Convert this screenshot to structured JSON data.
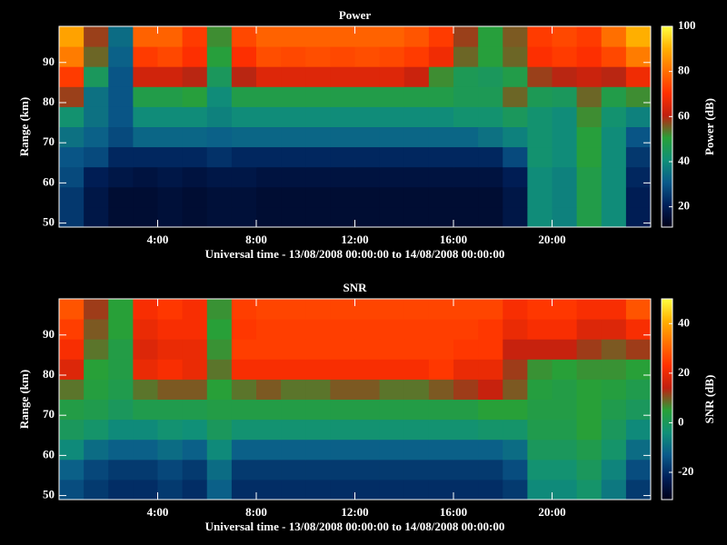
{
  "chart_data": [
    {
      "type": "heatmap",
      "title": "Power",
      "xlabel": "Universal time - 13/08/2008 00:00:00 to 14/08/2008 00:00:00",
      "ylabel": "Range (km)",
      "colorbar_label": "Power (dB)",
      "xlim": [
        0,
        24
      ],
      "xticks": [
        {
          "value": 4,
          "label": "4:00"
        },
        {
          "value": 8,
          "label": "8:00"
        },
        {
          "value": 12,
          "label": "12:00"
        },
        {
          "value": 16,
          "label": "16:00"
        },
        {
          "value": 20,
          "label": "20:00"
        }
      ],
      "ylim": [
        49,
        99
      ],
      "yticks": [
        50,
        60,
        70,
        80,
        90
      ],
      "zlim": [
        11,
        100
      ],
      "zticks": [
        20,
        40,
        60,
        80,
        100
      ],
      "colors": [
        "#000018",
        "#00205a",
        "#0a5a8a",
        "#109078",
        "#28a038",
        "#c02010",
        "#ff3000",
        "#ff7000",
        "#ffb000",
        "#ffff40"
      ],
      "xbins": [
        0,
        1,
        2,
        3,
        4,
        5,
        6,
        7,
        8,
        9,
        10,
        11,
        12,
        13,
        14,
        15,
        16,
        17,
        18,
        19,
        20,
        21,
        22,
        23,
        24
      ],
      "ybins": [
        49,
        54,
        59,
        64,
        69,
        74,
        79,
        84,
        89,
        94,
        99
      ],
      "values": [
        [
          25,
          18,
          15,
          15,
          16,
          15,
          16,
          16,
          15,
          15,
          15,
          15,
          15,
          15,
          15,
          15,
          15,
          15,
          18,
          40,
          38,
          48,
          40,
          20
        ],
        [
          25,
          18,
          15,
          15,
          16,
          15,
          16,
          16,
          15,
          15,
          15,
          15,
          15,
          15,
          15,
          15,
          15,
          15,
          18,
          40,
          38,
          48,
          40,
          20
        ],
        [
          28,
          20,
          18,
          17,
          18,
          17,
          18,
          18,
          17,
          17,
          17,
          17,
          17,
          17,
          17,
          17,
          17,
          17,
          20,
          40,
          38,
          48,
          40,
          22
        ],
        [
          30,
          28,
          22,
          22,
          22,
          22,
          24,
          22,
          22,
          22,
          22,
          22,
          22,
          22,
          22,
          22,
          22,
          22,
          28,
          42,
          40,
          50,
          40,
          25
        ],
        [
          35,
          32,
          28,
          33,
          33,
          33,
          32,
          33,
          33,
          33,
          33,
          33,
          33,
          33,
          33,
          33,
          33,
          35,
          38,
          42,
          40,
          50,
          40,
          30
        ],
        [
          42,
          35,
          30,
          40,
          40,
          40,
          38,
          40,
          40,
          40,
          40,
          40,
          40,
          40,
          40,
          40,
          42,
          42,
          45,
          42,
          40,
          52,
          42,
          38
        ],
        [
          58,
          35,
          30,
          48,
          48,
          50,
          40,
          48,
          48,
          48,
          48,
          48,
          48,
          48,
          48,
          48,
          46,
          46,
          55,
          46,
          45,
          55,
          48,
          52
        ],
        [
          72,
          45,
          30,
          63,
          63,
          60,
          45,
          60,
          65,
          65,
          65,
          65,
          65,
          65,
          62,
          52,
          46,
          45,
          48,
          58,
          60,
          62,
          60,
          68
        ],
        [
          82,
          55,
          32,
          72,
          74,
          70,
          50,
          70,
          75,
          74,
          75,
          74,
          75,
          74,
          72,
          68,
          55,
          50,
          55,
          70,
          72,
          70,
          74,
          82
        ],
        [
          88,
          58,
          34,
          78,
          78,
          72,
          52,
          74,
          78,
          78,
          78,
          78,
          78,
          78,
          76,
          72,
          58,
          50,
          56,
          72,
          74,
          72,
          80,
          90
        ]
      ]
    },
    {
      "type": "heatmap",
      "title": "SNR",
      "xlabel": "Universal time - 13/08/2008 00:00:00 to 14/08/2008 00:00:00",
      "ylabel": "Range (km)",
      "colorbar_label": "SNR (dB)",
      "xlim": [
        0,
        24
      ],
      "xticks": [
        {
          "value": 4,
          "label": "4:00"
        },
        {
          "value": 8,
          "label": "8:00"
        },
        {
          "value": 12,
          "label": "12:00"
        },
        {
          "value": 16,
          "label": "16:00"
        },
        {
          "value": 20,
          "label": "20:00"
        }
      ],
      "ylim": [
        49,
        99
      ],
      "yticks": [
        50,
        60,
        70,
        80,
        90
      ],
      "zlim": [
        -31,
        50
      ],
      "zticks": [
        -20,
        0,
        20,
        40
      ],
      "colors": [
        "#000018",
        "#00205a",
        "#0a5a8a",
        "#109078",
        "#28a038",
        "#c02010",
        "#ff3000",
        "#ff7000",
        "#ffb000",
        "#ffff40"
      ],
      "xbins": [
        0,
        1,
        2,
        3,
        4,
        5,
        6,
        7,
        8,
        9,
        10,
        11,
        12,
        13,
        14,
        15,
        16,
        17,
        18,
        19,
        20,
        21,
        22,
        23,
        24
      ],
      "ybins": [
        49,
        54,
        59,
        64,
        69,
        74,
        79,
        84,
        89,
        94,
        99
      ],
      "values": [
        [
          -15,
          -18,
          -20,
          -20,
          -18,
          -20,
          -12,
          -20,
          -20,
          -20,
          -20,
          -20,
          -20,
          -20,
          -20,
          -20,
          -20,
          -20,
          -18,
          -5,
          -5,
          -2,
          -8,
          -18
        ],
        [
          -12,
          -16,
          -18,
          -18,
          -16,
          -18,
          -10,
          -18,
          -18,
          -18,
          -18,
          -18,
          -18,
          -18,
          -18,
          -18,
          -18,
          -18,
          -15,
          -3,
          -3,
          0,
          -6,
          -15
        ],
        [
          -5,
          -10,
          -12,
          -12,
          -10,
          -12,
          -5,
          -12,
          -12,
          -12,
          -12,
          -12,
          -12,
          -12,
          -12,
          -12,
          -12,
          -12,
          -10,
          0,
          0,
          2,
          -2,
          -10
        ],
        [
          0,
          -2,
          -5,
          -5,
          -3,
          -4,
          0,
          -3,
          -3,
          -3,
          -3,
          -3,
          -3,
          -3,
          -3,
          -3,
          -3,
          -2,
          -2,
          2,
          2,
          5,
          0,
          -5
        ],
        [
          3,
          2,
          0,
          2,
          2,
          2,
          3,
          3,
          3,
          3,
          3,
          3,
          3,
          3,
          3,
          3,
          3,
          5,
          5,
          3,
          3,
          5,
          2,
          0
        ],
        [
          8,
          4,
          2,
          8,
          10,
          10,
          5,
          8,
          10,
          8,
          8,
          10,
          10,
          8,
          8,
          10,
          12,
          15,
          10,
          4,
          3,
          5,
          4,
          2
        ],
        [
          18,
          5,
          3,
          20,
          22,
          20,
          8,
          22,
          22,
          22,
          22,
          22,
          22,
          22,
          22,
          24,
          20,
          20,
          12,
          6,
          5,
          6,
          6,
          5
        ],
        [
          22,
          8,
          3,
          18,
          20,
          20,
          6,
          25,
          25,
          25,
          25,
          25,
          25,
          25,
          25,
          25,
          24,
          24,
          15,
          15,
          15,
          12,
          10,
          12
        ],
        [
          25,
          10,
          5,
          20,
          22,
          22,
          5,
          24,
          25,
          25,
          25,
          25,
          25,
          25,
          25,
          25,
          25,
          24,
          20,
          22,
          22,
          18,
          18,
          22
        ],
        [
          28,
          12,
          5,
          22,
          24,
          22,
          6,
          25,
          26,
          26,
          26,
          26,
          26,
          26,
          26,
          26,
          26,
          26,
          22,
          24,
          24,
          22,
          22,
          28
        ]
      ]
    }
  ]
}
